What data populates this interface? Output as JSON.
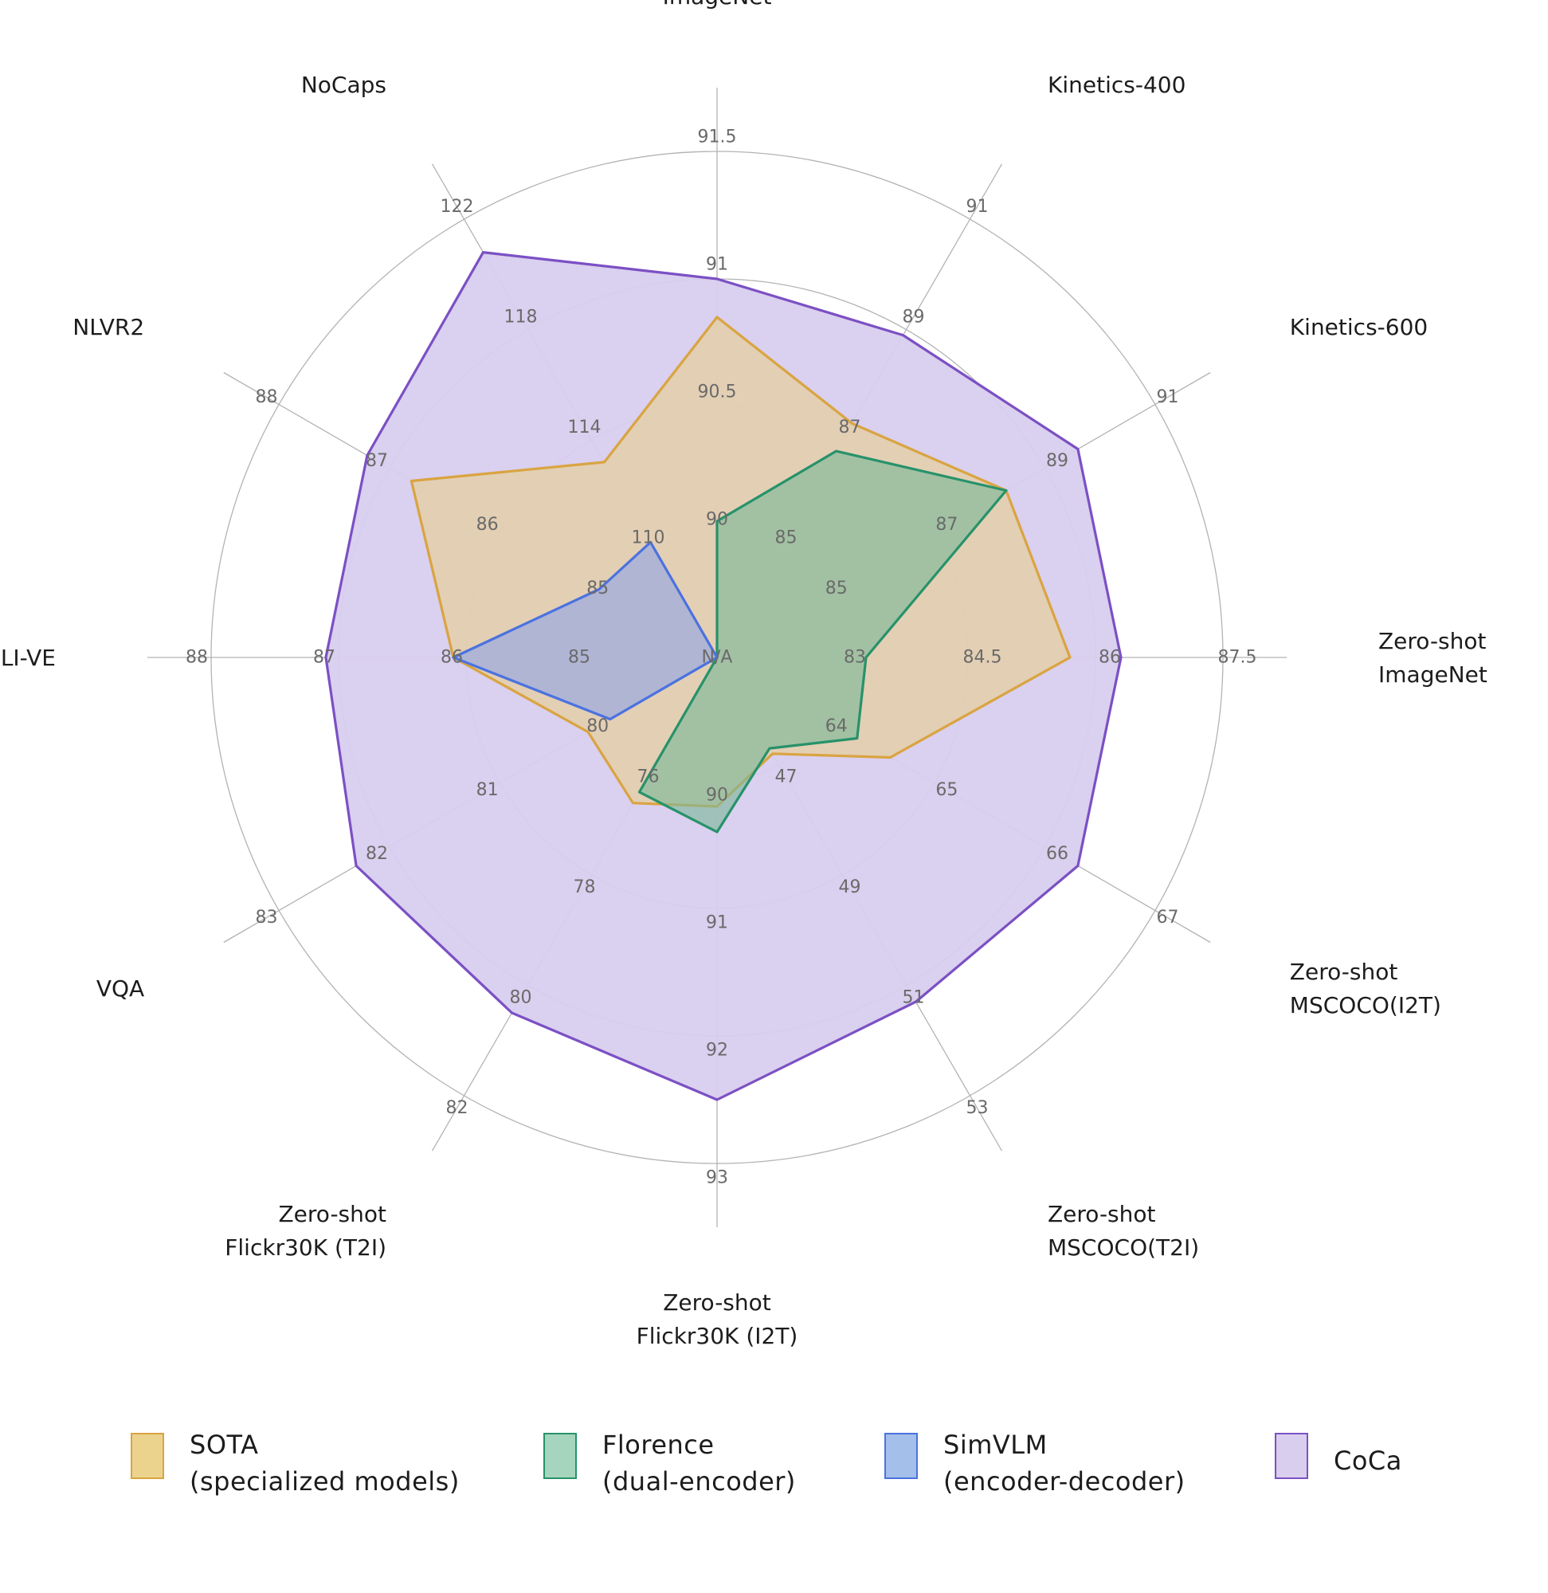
{
  "chart_data": {
    "type": "radar",
    "axes": [
      {
        "name": "ImageNet",
        "label_lines": [
          "ImageNet"
        ],
        "ticks": [
          "90",
          "90.5",
          "91",
          "91.5"
        ],
        "inner_label": ""
      },
      {
        "name": "Kinetics-400",
        "label_lines": [
          "Kinetics-400"
        ],
        "ticks": [
          "85",
          "87",
          "89",
          "91"
        ],
        "inner_label": ""
      },
      {
        "name": "Kinetics-600",
        "label_lines": [
          "Kinetics-600"
        ],
        "ticks": [
          "85",
          "87",
          "89",
          "91"
        ],
        "inner_label": ""
      },
      {
        "name": "Zero-shot ImageNet",
        "label_lines": [
          "Zero-shot",
          "ImageNet"
        ],
        "ticks": [
          "83",
          "84.5",
          "86",
          "87.5"
        ],
        "inner_label": "N/A"
      },
      {
        "name": "Zero-shot MSCOCO(I2T)",
        "label_lines": [
          "Zero-shot",
          "MSCOCO(I2T)"
        ],
        "ticks": [
          "64",
          "65",
          "66",
          "67"
        ],
        "inner_label": ""
      },
      {
        "name": "Zero-shot MSCOCO(T2I)",
        "label_lines": [
          "Zero-shot",
          "MSCOCO(T2I)"
        ],
        "ticks": [
          "47",
          "49",
          "51",
          "53"
        ],
        "inner_label": ""
      },
      {
        "name": "Zero-shot Flickr30K (I2T)",
        "label_lines": [
          "Zero-shot",
          "Flickr30K (I2T)"
        ],
        "ticks": [
          "90",
          "91",
          "92",
          "93"
        ],
        "inner_label": ""
      },
      {
        "name": "Zero-shot Flickr30K (T2I)",
        "label_lines": [
          "Zero-shot",
          "Flickr30K (T2I)"
        ],
        "ticks": [
          "76",
          "78",
          "80",
          "82"
        ],
        "inner_label": ""
      },
      {
        "name": "VQA",
        "label_lines": [
          "VQA"
        ],
        "ticks": [
          "80",
          "81",
          "82",
          "83"
        ],
        "inner_label": ""
      },
      {
        "name": "SNLI-VE",
        "label_lines": [
          "SNLI-VE"
        ],
        "ticks": [
          "85",
          "86",
          "87",
          "88"
        ],
        "inner_label": ""
      },
      {
        "name": "NLVR2",
        "label_lines": [
          "NLVR2"
        ],
        "ticks": [
          "85",
          "86",
          "87",
          "88"
        ],
        "inner_label": ""
      },
      {
        "name": "NoCaps",
        "label_lines": [
          "NoCaps"
        ],
        "ticks": [
          "110",
          "114",
          "118",
          "122"
        ],
        "inner_label": ""
      }
    ],
    "series": [
      {
        "name": "SOTA (specialized models)",
        "legend_lines": [
          "SOTA",
          "(specialized models)"
        ],
        "color": "#d9a441",
        "fill": "#e9cf8f",
        "swatch_fill": "#ebd38e",
        "values": [
          90.85,
          87.3,
          88.3,
          85.7,
          64.6,
          46.8,
          90.2,
          76.7,
          80.2,
          86.1,
          86.8,
          113.2
        ]
      },
      {
        "name": "Florence (dual-encoder)",
        "legend_lines": [
          "Florence",
          "(dual-encoder)"
        ],
        "color": "#27926a",
        "fill": "#7ab89a",
        "swatch_fill": "#a6d5be",
        "values": [
          90.05,
          86.8,
          88.3,
          83.3,
          64.3,
          46.7,
          90.4,
          76.5,
          null,
          null,
          null,
          null
        ]
      },
      {
        "name": "SimVLM (encoder-decoder)",
        "legend_lines": [
          "SimVLM",
          "(encoder-decoder)"
        ],
        "color": "#4b72e0",
        "fill": "#8fa4e6",
        "swatch_fill": "#a4bfe9",
        "values": [
          null,
          null,
          null,
          null,
          null,
          null,
          null,
          null,
          80.0,
          86.1,
          85.1,
          110.3
        ]
      },
      {
        "name": "CoCa",
        "legend_lines": [
          "CoCa"
        ],
        "color": "#7b50c4",
        "fill": "#d8cdee",
        "swatch_fill": "#d9ceed",
        "values": [
          91.0,
          88.9,
          89.6,
          86.3,
          66.3,
          51.3,
          92.5,
          80.5,
          82.3,
          87.1,
          87.2,
          120.8
        ]
      }
    ],
    "grid": true,
    "legend_position": "bottom"
  }
}
